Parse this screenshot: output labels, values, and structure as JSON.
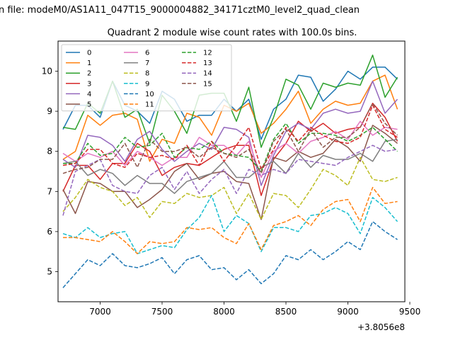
{
  "figure": {
    "suptitle": "n file: modeM0/AS1A11_047T15_9000004882_34171cztM0_level2_quad_clean",
    "offset_label": "+3.8056e8"
  },
  "chart_data": {
    "type": "line",
    "title": "Quadrant 2 module wise count rates with 100.0s bins.",
    "xlabel": "",
    "ylabel": "",
    "x_offset": 380560000,
    "xlim": [
      6660,
      9460
    ],
    "ylim": [
      4.25,
      10.75
    ],
    "xticks": [
      7000,
      7500,
      8000,
      8500,
      9000,
      9500
    ],
    "yticks": [
      5,
      6,
      7,
      8,
      9,
      10
    ],
    "legend_position": "upper-left",
    "legend_columns": 3,
    "x": [
      6700,
      6800,
      6900,
      7000,
      7100,
      7200,
      7300,
      7400,
      7500,
      7600,
      7700,
      7800,
      7900,
      8000,
      8100,
      8200,
      8300,
      8400,
      8500,
      8600,
      8700,
      8800,
      8900,
      9000,
      9100,
      9200,
      9300,
      9400
    ],
    "series": [
      {
        "name": "0",
        "color": "#1f77b4",
        "dash": "solid",
        "values": [
          8.55,
          9.15,
          9.15,
          8.85,
          9.75,
          9.15,
          9.0,
          8.7,
          9.5,
          9.3,
          8.75,
          8.9,
          8.9,
          9.3,
          9.0,
          9.3,
          8.3,
          9.05,
          9.3,
          9.9,
          9.85,
          9.25,
          9.55,
          10.0,
          9.8,
          10.1,
          10.1,
          9.8
        ]
      },
      {
        "name": "1",
        "color": "#ff7f0e",
        "dash": "solid",
        "values": [
          7.8,
          8.0,
          8.9,
          8.65,
          8.9,
          8.95,
          8.8,
          7.75,
          8.3,
          8.2,
          8.95,
          8.85,
          8.4,
          9.15,
          9.0,
          9.2,
          8.45,
          8.7,
          9.05,
          9.5,
          8.7,
          9.05,
          9.25,
          9.15,
          9.2,
          9.75,
          9.9,
          9.05
        ]
      },
      {
        "name": "2",
        "color": "#2ca02c",
        "dash": "solid",
        "values": [
          8.6,
          8.55,
          9.2,
          8.95,
          9.75,
          8.85,
          9.05,
          8.2,
          9.4,
          9.0,
          8.45,
          9.4,
          9.45,
          9.45,
          8.75,
          9.6,
          8.1,
          8.85,
          9.8,
          9.65,
          9.05,
          9.7,
          9.6,
          9.7,
          9.65,
          10.4,
          9.35,
          9.85
        ]
      },
      {
        "name": "3",
        "color": "#d62728",
        "dash": "solid",
        "values": [
          7.0,
          7.65,
          7.65,
          7.3,
          7.7,
          7.7,
          8.2,
          8.0,
          7.4,
          7.6,
          7.7,
          7.65,
          7.85,
          8.05,
          8.15,
          8.15,
          6.9,
          7.8,
          8.2,
          8.75,
          8.5,
          8.7,
          8.45,
          8.55,
          8.6,
          9.2,
          8.85,
          8.25
        ]
      },
      {
        "name": "4",
        "color": "#9467bd",
        "dash": "solid",
        "values": [
          7.8,
          7.6,
          8.4,
          8.35,
          8.15,
          7.75,
          8.3,
          8.5,
          8.05,
          7.75,
          8.0,
          8.2,
          8.05,
          8.6,
          8.55,
          8.35,
          7.15,
          7.9,
          8.5,
          8.7,
          8.55,
          8.95,
          9.05,
          8.95,
          9.0,
          9.75,
          8.95,
          9.3
        ]
      },
      {
        "name": "5",
        "color": "#8c564b",
        "dash": "solid",
        "values": [
          7.05,
          6.45,
          7.25,
          7.2,
          7.0,
          7.0,
          6.6,
          6.8,
          7.05,
          7.5,
          7.7,
          7.3,
          7.45,
          7.5,
          7.25,
          7.2,
          6.3,
          7.85,
          7.75,
          8.0,
          7.85,
          7.95,
          8.3,
          8.1,
          7.75,
          8.65,
          8.45,
          8.2
        ]
      },
      {
        "name": "6",
        "color": "#e377c2",
        "dash": "solid",
        "values": [
          7.95,
          7.75,
          7.95,
          7.85,
          8.0,
          7.65,
          8.0,
          7.85,
          7.65,
          7.85,
          7.85,
          8.35,
          8.15,
          8.15,
          7.9,
          8.25,
          7.35,
          8.0,
          8.2,
          7.95,
          8.25,
          8.35,
          8.5,
          8.3,
          8.75,
          8.4,
          8.6,
          8.55
        ]
      },
      {
        "name": "7",
        "color": "#7f7f7f",
        "dash": "solid",
        "values": [
          7.7,
          7.75,
          7.4,
          7.55,
          7.45,
          7.15,
          7.4,
          7.2,
          7.2,
          6.95,
          7.25,
          7.35,
          7.45,
          7.75,
          7.35,
          7.35,
          7.6,
          7.75,
          7.45,
          7.95,
          7.6,
          7.9,
          7.8,
          7.8,
          7.95,
          7.75,
          8.25,
          8.3
        ]
      },
      {
        "name": "8",
        "color": "#bcbd22",
        "dash": "dashed",
        "values": [
          6.5,
          6.85,
          7.3,
          7.1,
          7.0,
          6.65,
          6.85,
          6.35,
          6.75,
          6.7,
          6.95,
          6.85,
          6.9,
          7.1,
          6.45,
          6.95,
          6.3,
          6.95,
          6.9,
          6.6,
          7.05,
          7.55,
          7.4,
          7.15,
          7.85,
          7.3,
          7.25,
          7.35
        ]
      },
      {
        "name": "9",
        "color": "#17becf",
        "dash": "dashed",
        "values": [
          5.95,
          5.85,
          6.1,
          5.85,
          5.95,
          6.0,
          5.45,
          5.55,
          5.65,
          5.6,
          6.05,
          6.35,
          6.9,
          6.0,
          6.4,
          6.2,
          5.5,
          6.1,
          6.1,
          6.0,
          6.4,
          6.45,
          6.6,
          6.45,
          5.95,
          6.85,
          6.6,
          6.25
        ]
      },
      {
        "name": "10",
        "color": "#1f77b4",
        "dash": "dashed",
        "values": [
          4.6,
          4.95,
          5.3,
          5.15,
          5.45,
          5.15,
          5.1,
          5.2,
          5.35,
          4.95,
          5.3,
          5.4,
          5.05,
          5.1,
          4.8,
          5.05,
          4.7,
          4.95,
          5.4,
          5.3,
          5.55,
          5.3,
          5.5,
          5.75,
          5.55,
          6.25,
          6.0,
          5.8
        ]
      },
      {
        "name": "11",
        "color": "#ff7f0e",
        "dash": "dashed",
        "values": [
          5.85,
          5.85,
          5.8,
          5.75,
          6.0,
          5.75,
          5.45,
          5.75,
          5.7,
          5.75,
          6.1,
          6.05,
          6.1,
          5.85,
          5.7,
          6.2,
          5.55,
          6.15,
          6.25,
          6.4,
          6.15,
          6.55,
          6.75,
          6.8,
          6.25,
          7.1,
          6.7,
          6.75
        ]
      },
      {
        "name": "12",
        "color": "#2ca02c",
        "dash": "dashed",
        "values": [
          7.7,
          7.7,
          8.2,
          7.9,
          7.95,
          8.35,
          8.1,
          8.15,
          8.45,
          7.85,
          8.1,
          8.05,
          8.25,
          7.95,
          7.9,
          7.85,
          7.5,
          8.3,
          8.7,
          8.2,
          8.45,
          8.45,
          8.4,
          8.25,
          8.4,
          8.6,
          8.3,
          8.0
        ]
      },
      {
        "name": "13",
        "color": "#d62728",
        "dash": "dashed",
        "values": [
          7.65,
          7.7,
          8.05,
          8.05,
          7.7,
          7.6,
          7.95,
          7.85,
          7.9,
          7.8,
          8.15,
          7.65,
          8.25,
          7.75,
          8.15,
          8.6,
          7.55,
          8.05,
          8.6,
          8.25,
          8.6,
          8.4,
          8.25,
          8.2,
          8.35,
          9.15,
          8.55,
          8.35
        ]
      },
      {
        "name": "14",
        "color": "#9467bd",
        "dash": "dashed",
        "values": [
          6.4,
          7.5,
          7.65,
          7.8,
          7.15,
          7.0,
          6.95,
          7.4,
          7.6,
          7.05,
          7.5,
          6.95,
          7.3,
          7.55,
          6.95,
          7.55,
          7.4,
          7.55,
          7.45,
          7.8,
          7.75,
          7.7,
          7.65,
          7.85,
          8.0,
          8.15,
          8.0,
          8.05
        ]
      },
      {
        "name": "15",
        "color": "#8c564b",
        "dash": "dashed",
        "values": [
          7.45,
          7.55,
          7.6,
          7.8,
          7.8,
          8.2,
          7.6,
          8.3,
          8.0,
          8.0,
          8.1,
          7.85,
          8.1,
          7.95,
          7.85,
          8.05,
          7.45,
          8.25,
          8.55,
          8.0,
          8.55,
          8.1,
          8.35,
          8.35,
          8.6,
          9.2,
          8.7,
          8.4
        ]
      }
    ]
  }
}
